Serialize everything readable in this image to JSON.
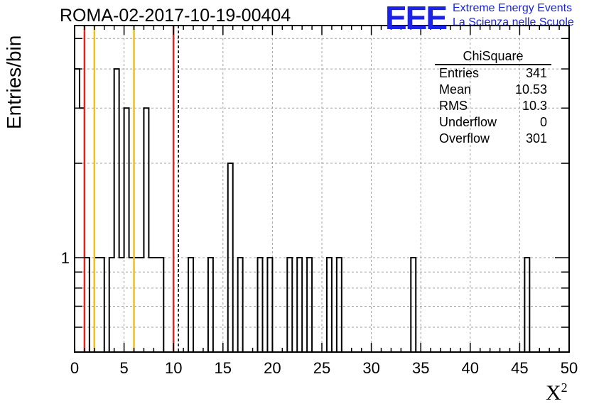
{
  "header": {
    "title": "ROMA-02-2017-10-19-00404",
    "logo": "EEE",
    "logo_line1": "Extreme Energy Events",
    "logo_line2": "La Scienza nelle Scuole"
  },
  "stats_box": {
    "title": "ChiSquare",
    "rows": [
      {
        "label": "Entries",
        "value": "341"
      },
      {
        "label": "Mean",
        "value": "10.53"
      },
      {
        "label": "RMS",
        "value": "10.3"
      },
      {
        "label": "Underflow",
        "value": "0"
      },
      {
        "label": "Overflow",
        "value": "301"
      }
    ]
  },
  "chart_data": {
    "type": "bar",
    "histogram": true,
    "title": "ROMA-02-2017-10-19-00404",
    "xlabel": "X",
    "xlabel_superscript": "2",
    "ylabel": "Entries/bin",
    "xlim": [
      0,
      50
    ],
    "ylim": [
      0.5,
      5.5
    ],
    "yscale": "log",
    "bin_width": 0.5,
    "x_ticks": [
      "0",
      "5",
      "10",
      "15",
      "20",
      "25",
      "30",
      "35",
      "40",
      "45",
      "50"
    ],
    "y_tick_labels": [
      {
        "value": 1,
        "label": "1"
      }
    ],
    "grid": true,
    "bins": [
      {
        "x": 0.0,
        "y": 4
      },
      {
        "x": 0.5,
        "y": 3
      },
      {
        "x": 1.0,
        "y": 1
      },
      {
        "x": 2.0,
        "y": 1
      },
      {
        "x": 2.5,
        "y": 1
      },
      {
        "x": 3.0,
        "y": 0
      },
      {
        "x": 3.5,
        "y": 1
      },
      {
        "x": 4.0,
        "y": 4
      },
      {
        "x": 4.5,
        "y": 1
      },
      {
        "x": 5.0,
        "y": 3
      },
      {
        "x": 5.5,
        "y": 1
      },
      {
        "x": 6.0,
        "y": 1
      },
      {
        "x": 6.5,
        "y": 1
      },
      {
        "x": 7.0,
        "y": 3
      },
      {
        "x": 7.5,
        "y": 1
      },
      {
        "x": 8.0,
        "y": 1
      },
      {
        "x": 8.5,
        "y": 1
      },
      {
        "x": 11.5,
        "y": 1
      },
      {
        "x": 13.5,
        "y": 1
      },
      {
        "x": 15.5,
        "y": 2
      },
      {
        "x": 16.5,
        "y": 1
      },
      {
        "x": 18.5,
        "y": 1
      },
      {
        "x": 19.5,
        "y": 1
      },
      {
        "x": 21.5,
        "y": 1
      },
      {
        "x": 22.5,
        "y": 1
      },
      {
        "x": 23.5,
        "y": 1
      },
      {
        "x": 25.5,
        "y": 1
      },
      {
        "x": 26.5,
        "y": 1
      },
      {
        "x": 34.0,
        "y": 1
      },
      {
        "x": 45.5,
        "y": 1
      }
    ],
    "reference_lines": [
      {
        "x": 1.0,
        "color": "#e8201c",
        "style": "solid"
      },
      {
        "x": 2.0,
        "color": "#f2c01a",
        "style": "solid"
      },
      {
        "x": 6.0,
        "color": "#f2c01a",
        "style": "solid"
      },
      {
        "x": 10.0,
        "color": "#e8201c",
        "style": "solid"
      },
      {
        "x": 10.5,
        "color": "#000000",
        "style": "dashed"
      }
    ],
    "colors": {
      "histogram": "#000000",
      "grid": "#a0a0a0"
    }
  }
}
